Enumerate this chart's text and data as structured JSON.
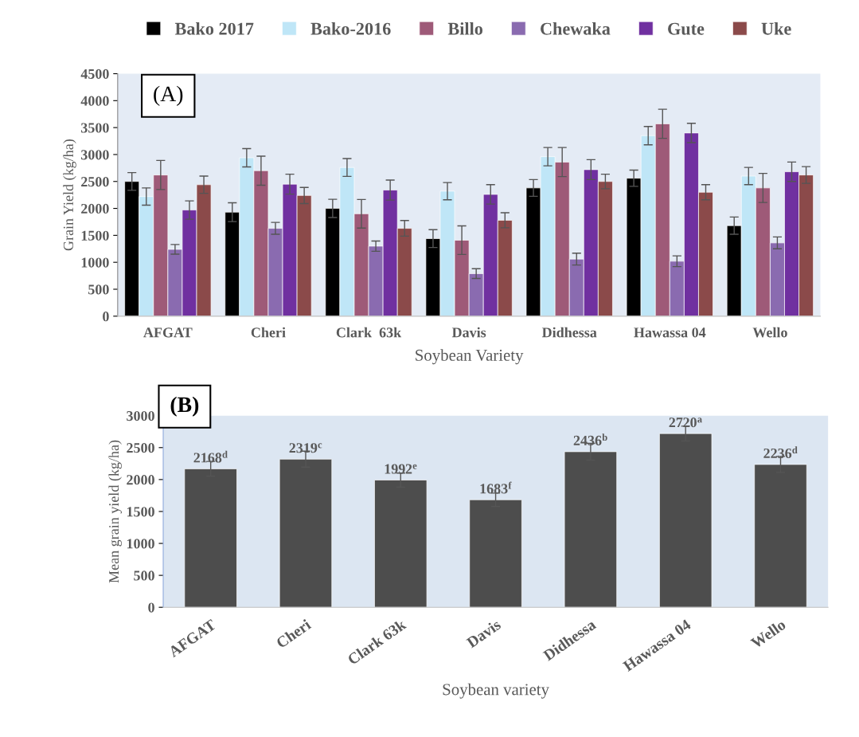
{
  "chart_data": [
    {
      "type": "bar",
      "title": null,
      "annotations": [
        "(A)"
      ],
      "xlabel": "Soybean Variety",
      "ylabel": "Grain Yield (kg/ha)",
      "categories": [
        "AFGAT",
        "Cheri",
        "Clark  63k",
        "Davis",
        "Didhessa",
        "Hawassa 04",
        "Wello"
      ],
      "series": [
        {
          "name": "Bako 2017",
          "color": "#000000",
          "values": [
            2500,
            1930,
            2000,
            1440,
            2380,
            2560,
            1680
          ],
          "errors": [
            165,
            175,
            170,
            165,
            155,
            150,
            160
          ]
        },
        {
          "name": "Bako-2016",
          "color": "#bfe6f7",
          "values": [
            2220,
            2940,
            2760,
            2320,
            2960,
            3350,
            2600
          ],
          "errors": [
            160,
            170,
            165,
            160,
            170,
            170,
            160
          ]
        },
        {
          "name": "Billo",
          "color": "#9e5a78",
          "values": [
            2620,
            2700,
            1900,
            1410,
            2860,
            3570,
            2380
          ],
          "errors": [
            270,
            270,
            265,
            265,
            270,
            270,
            270
          ]
        },
        {
          "name": "Chewaka",
          "color": "#8a6bb0",
          "values": [
            1240,
            1630,
            1300,
            790,
            1060,
            1020,
            1360
          ],
          "errors": [
            90,
            110,
            95,
            90,
            110,
            100,
            110
          ]
        },
        {
          "name": "Gute",
          "color": "#7030a0",
          "values": [
            1970,
            2450,
            2340,
            2260,
            2720,
            3400,
            2680
          ],
          "errors": [
            170,
            185,
            185,
            180,
            185,
            180,
            180
          ]
        },
        {
          "name": "Uke",
          "color": "#8b4a4a",
          "values": [
            2440,
            2240,
            1630,
            1780,
            2500,
            2300,
            2620
          ],
          "errors": [
            160,
            150,
            145,
            140,
            135,
            140,
            155
          ]
        }
      ],
      "ylim": [
        0,
        4500
      ],
      "yticks": [
        0,
        500,
        1000,
        1500,
        2000,
        2500,
        3000,
        3500,
        4000,
        4500
      ],
      "legend": "top",
      "grid": false
    },
    {
      "type": "bar",
      "annotations": [
        "(B)"
      ],
      "xlabel": "Soybean variety",
      "ylabel": "Mean grain yield (kg/ha)",
      "categories": [
        "AFGAT",
        "Cheri",
        "Clark 63k",
        "Davis",
        "Didhessa",
        "Hawassa 04",
        "Wello"
      ],
      "values": [
        2168,
        2319,
        1992,
        1683,
        2436,
        2720,
        2236
      ],
      "color": "#4d4d4d",
      "errors": [
        115,
        125,
        110,
        105,
        130,
        115,
        125
      ],
      "value_labels": [
        "2168$^{d}$",
        "2319$^{c}$",
        "1992$^{e}$",
        "1683$^{f}$",
        "2436$^{b}$",
        "2720$^{a}$",
        "2236$^{d}$"
      ],
      "ylim": [
        0,
        3000
      ],
      "yticks": [
        0,
        500,
        1000,
        1500,
        2000,
        2500,
        3000
      ],
      "grid": false
    }
  ]
}
